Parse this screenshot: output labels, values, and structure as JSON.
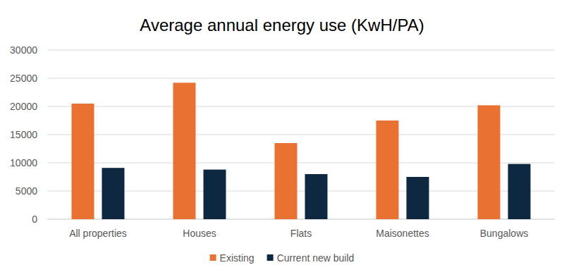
{
  "chart_data": {
    "type": "bar",
    "title": "Average annual energy use (KwH/PA)",
    "categories": [
      "All properties",
      "Houses",
      "Flats",
      "Maisonettes",
      "Bungalows"
    ],
    "series": [
      {
        "name": "Existing",
        "color": "#e97132",
        "values": [
          20500,
          24200,
          13500,
          17500,
          20200
        ]
      },
      {
        "name": "Current new build",
        "color": "#0e2841",
        "values": [
          9100,
          8800,
          8000,
          7500,
          9800
        ]
      }
    ],
    "ylim": [
      0,
      30000
    ],
    "yticks": [
      0,
      5000,
      10000,
      15000,
      20000,
      25000,
      30000
    ],
    "grid": true,
    "legend": "bottom"
  }
}
